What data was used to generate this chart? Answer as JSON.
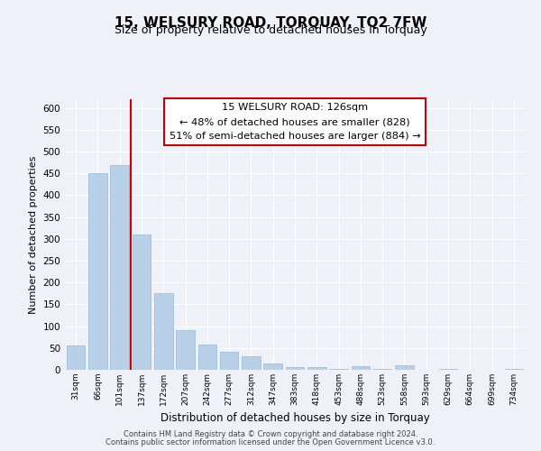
{
  "title": "15, WELSURY ROAD, TORQUAY, TQ2 7FW",
  "subtitle": "Size of property relative to detached houses in Torquay",
  "xlabel": "Distribution of detached houses by size in Torquay",
  "ylabel": "Number of detached properties",
  "bar_labels": [
    "31sqm",
    "66sqm",
    "101sqm",
    "137sqm",
    "172sqm",
    "207sqm",
    "242sqm",
    "277sqm",
    "312sqm",
    "347sqm",
    "383sqm",
    "418sqm",
    "453sqm",
    "488sqm",
    "523sqm",
    "558sqm",
    "593sqm",
    "629sqm",
    "664sqm",
    "699sqm",
    "734sqm"
  ],
  "bar_values": [
    55,
    450,
    470,
    310,
    175,
    90,
    58,
    42,
    30,
    15,
    7,
    7,
    2,
    8,
    2,
    10,
    0,
    2,
    0,
    0,
    2
  ],
  "bar_color": "#b8d0e8",
  "bar_edge_color": "#95b8d4",
  "vline_color": "#cc0000",
  "vline_x": 2.5,
  "annotation_title": "15 WELSURY ROAD: 126sqm",
  "annotation_line1": "← 48% of detached houses are smaller (828)",
  "annotation_line2": "51% of semi-detached houses are larger (884) →",
  "annotation_box_facecolor": "#ffffff",
  "annotation_box_edgecolor": "#cc0000",
  "ylim": [
    0,
    620
  ],
  "yticks": [
    0,
    50,
    100,
    150,
    200,
    250,
    300,
    350,
    400,
    450,
    500,
    550,
    600
  ],
  "footer1": "Contains HM Land Registry data © Crown copyright and database right 2024.",
  "footer2": "Contains public sector information licensed under the Open Government Licence v3.0.",
  "bg_color": "#eef2f8",
  "grid_color": "#ffffff",
  "title_fontsize": 11,
  "subtitle_fontsize": 9,
  "ylabel_fontsize": 8,
  "xlabel_fontsize": 8.5
}
